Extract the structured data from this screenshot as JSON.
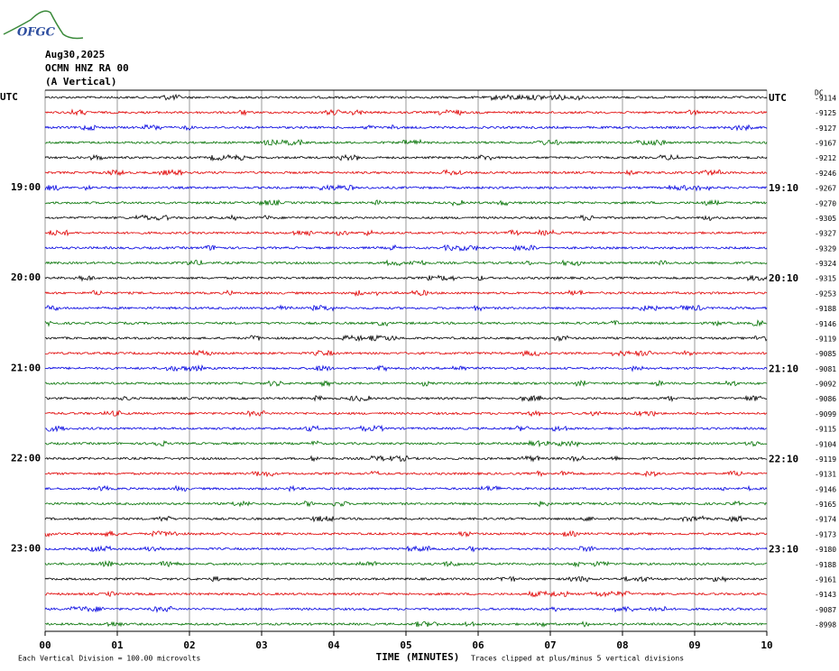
{
  "chart_data": {
    "type": "helicorder",
    "logo": "OFGC",
    "title_lines": [
      "Aug30,2025",
      "OCMN HNZ RA 00",
      "(A Vertical)"
    ],
    "dc_header": "DC",
    "colors": [
      "#000000",
      "#e00000",
      "#0000e0",
      "#007000"
    ],
    "left_labels": [
      "UTC",
      null,
      null,
      null,
      null,
      null,
      "19:00",
      null,
      null,
      null,
      null,
      null,
      "20:00",
      null,
      null,
      null,
      null,
      null,
      "21:00",
      null,
      null,
      null,
      null,
      null,
      "22:00",
      null,
      null,
      null,
      null,
      null,
      "23:00",
      null,
      null,
      null,
      null,
      null
    ],
    "right_labels": [
      "UTC",
      null,
      null,
      null,
      null,
      null,
      "19:10",
      null,
      null,
      null,
      null,
      null,
      "20:10",
      null,
      null,
      null,
      null,
      null,
      "21:10",
      null,
      null,
      null,
      null,
      null,
      "22:10",
      null,
      null,
      null,
      null,
      null,
      "23:10",
      null,
      null,
      null,
      null,
      null
    ],
    "dc_offsets": [
      -9114,
      -9125,
      -9127,
      -9167,
      -9212,
      -9246,
      -9267,
      -9270,
      -9305,
      -9327,
      -9329,
      -9324,
      -9315,
      -9253,
      -9188,
      -9146,
      -9119,
      -9085,
      -9081,
      -9092,
      -9086,
      -9099,
      -9115,
      -9104,
      -9119,
      -9131,
      -9146,
      -9165,
      -9174,
      -9173,
      -9180,
      -9188,
      -9161,
      -9143,
      -9087,
      -8998
    ],
    "xlim": [
      0,
      10
    ],
    "xticks": [
      {
        "value": 0,
        "label": "00"
      },
      {
        "value": 1,
        "label": "01"
      },
      {
        "value": 2,
        "label": "02"
      },
      {
        "value": 3,
        "label": "03"
      },
      {
        "value": 4,
        "label": "04"
      },
      {
        "value": 5,
        "label": "05"
      },
      {
        "value": 6,
        "label": "06"
      },
      {
        "value": 7,
        "label": "07"
      },
      {
        "value": 8,
        "label": "08"
      },
      {
        "value": 9,
        "label": "09"
      },
      {
        "value": 10,
        "label": "10"
      }
    ],
    "xlabel": "TIME (MINUTES)",
    "note_left": "Each Vertical Division =  100.00 microvolts",
    "note_right": "Traces clipped at plus/minus 5 vertical divisions",
    "grid": true
  }
}
